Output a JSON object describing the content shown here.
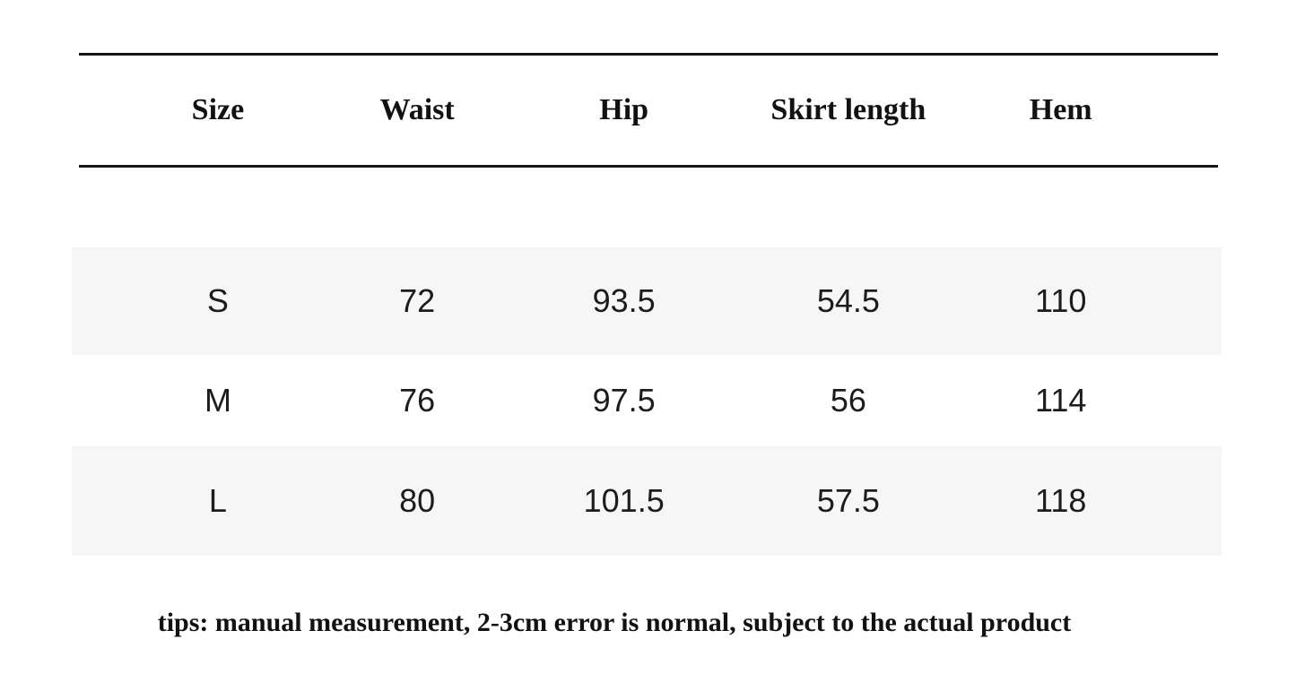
{
  "table": {
    "columns": [
      "Size",
      "Waist",
      "Hip",
      "Skirt length",
      "Hem"
    ],
    "rows": [
      {
        "cells": [
          "S",
          "72",
          "93.5",
          "54.5",
          "110"
        ]
      },
      {
        "cells": [
          "M",
          "76",
          "97.5",
          "56",
          "114"
        ]
      },
      {
        "cells": [
          "L",
          "80",
          "101.5",
          "57.5",
          "118"
        ]
      }
    ]
  },
  "tips": "tips: manual measurement, 2-3cm error is normal, subject to the actual product",
  "colors": {
    "background": "#ffffff",
    "stripe": "#f6f6f6",
    "rule": "#161616",
    "text": "#1c1c1c"
  }
}
